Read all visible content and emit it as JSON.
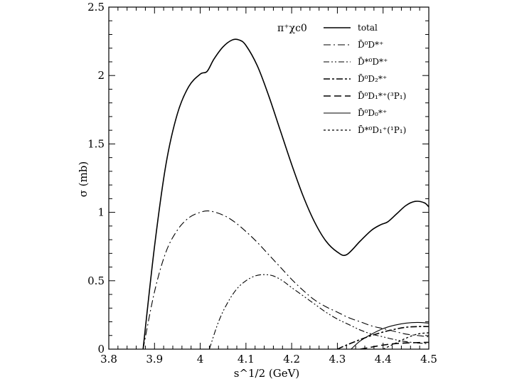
{
  "chart_data": {
    "type": "line",
    "title": "",
    "xlabel": "s^1/2 (GeV)",
    "ylabel": "σ (mb)",
    "xlim": [
      3.8,
      4.5
    ],
    "ylim": [
      0,
      2.5
    ],
    "x_ticks": [
      3.8,
      3.9,
      4.0,
      4.1,
      4.2,
      4.3,
      4.4,
      4.5
    ],
    "x_tick_labels": [
      "3.8",
      "3.9",
      "4",
      "4.1",
      "4.2",
      "4.3",
      "4.4",
      "4.5"
    ],
    "y_ticks": [
      0,
      0.5,
      1,
      1.5,
      2,
      2.5
    ],
    "y_tick_labels": [
      "0",
      "0.5",
      "1",
      "1.5",
      "2",
      "2.5"
    ],
    "legend_title": "π⁺χc0",
    "legend_position": "top-right",
    "series": [
      {
        "name": "total",
        "label_text": "total",
        "dash": "solid",
        "width": 1.6,
        "points": [
          [
            3.875,
            0
          ],
          [
            3.9,
            0.75
          ],
          [
            3.925,
            1.35
          ],
          [
            3.95,
            1.72
          ],
          [
            3.975,
            1.92
          ],
          [
            4.0,
            2.01
          ],
          [
            4.015,
            2.03
          ],
          [
            4.03,
            2.12
          ],
          [
            4.05,
            2.21
          ],
          [
            4.07,
            2.26
          ],
          [
            4.085,
            2.26
          ],
          [
            4.1,
            2.22
          ],
          [
            4.125,
            2.07
          ],
          [
            4.15,
            1.85
          ],
          [
            4.175,
            1.6
          ],
          [
            4.2,
            1.35
          ],
          [
            4.225,
            1.12
          ],
          [
            4.25,
            0.93
          ],
          [
            4.275,
            0.79
          ],
          [
            4.3,
            0.71
          ],
          [
            4.32,
            0.69
          ],
          [
            4.35,
            0.79
          ],
          [
            4.375,
            0.87
          ],
          [
            4.395,
            0.91
          ],
          [
            4.41,
            0.93
          ],
          [
            4.43,
            0.99
          ],
          [
            4.45,
            1.05
          ],
          [
            4.47,
            1.08
          ],
          [
            4.49,
            1.07
          ],
          [
            4.5,
            1.04
          ]
        ]
      },
      {
        "name": "D0 D*+",
        "label_text": "D̄⁰D*⁺",
        "dash": "10,4,2,4",
        "width": 1.1,
        "points": [
          [
            3.875,
            0
          ],
          [
            3.9,
            0.42
          ],
          [
            3.925,
            0.71
          ],
          [
            3.95,
            0.87
          ],
          [
            3.975,
            0.96
          ],
          [
            4.0,
            1.0
          ],
          [
            4.02,
            1.01
          ],
          [
            4.05,
            0.98
          ],
          [
            4.075,
            0.93
          ],
          [
            4.1,
            0.86
          ],
          [
            4.125,
            0.78
          ],
          [
            4.15,
            0.69
          ],
          [
            4.175,
            0.6
          ],
          [
            4.2,
            0.51
          ],
          [
            4.225,
            0.43
          ],
          [
            4.25,
            0.36
          ],
          [
            4.275,
            0.31
          ],
          [
            4.3,
            0.27
          ],
          [
            4.325,
            0.23
          ],
          [
            4.35,
            0.2
          ],
          [
            4.375,
            0.17
          ],
          [
            4.4,
            0.15
          ],
          [
            4.425,
            0.13
          ],
          [
            4.45,
            0.11
          ],
          [
            4.475,
            0.1
          ],
          [
            4.5,
            0.09
          ]
        ]
      },
      {
        "name": "D*0 D*+",
        "label_text": "D̄*⁰D*⁺",
        "dash": "8,3,2,3,2,3",
        "width": 1.1,
        "points": [
          [
            4.02,
            0
          ],
          [
            4.04,
            0.2
          ],
          [
            4.06,
            0.34
          ],
          [
            4.08,
            0.44
          ],
          [
            4.1,
            0.5
          ],
          [
            4.12,
            0.535
          ],
          [
            4.14,
            0.545
          ],
          [
            4.16,
            0.535
          ],
          [
            4.18,
            0.5
          ],
          [
            4.2,
            0.45
          ],
          [
            4.225,
            0.39
          ],
          [
            4.25,
            0.33
          ],
          [
            4.275,
            0.27
          ],
          [
            4.3,
            0.22
          ],
          [
            4.325,
            0.18
          ],
          [
            4.35,
            0.14
          ],
          [
            4.375,
            0.11
          ],
          [
            4.4,
            0.09
          ],
          [
            4.425,
            0.07
          ],
          [
            4.45,
            0.055
          ],
          [
            4.475,
            0.045
          ],
          [
            4.5,
            0.04
          ]
        ]
      },
      {
        "name": "D0 D2*+",
        "label_text": "D̄⁰D₂*⁺",
        "dash": "9,3,3,3",
        "width": 1.6,
        "points": [
          [
            4.3,
            0
          ],
          [
            4.32,
            0.03
          ],
          [
            4.35,
            0.07
          ],
          [
            4.375,
            0.1
          ],
          [
            4.4,
            0.125
          ],
          [
            4.425,
            0.145
          ],
          [
            4.45,
            0.16
          ],
          [
            4.475,
            0.165
          ],
          [
            4.5,
            0.165
          ]
        ]
      },
      {
        "name": "D0 D1*+(3P1)",
        "label_text": "D̄⁰D₁*⁺(³P₁)",
        "dash": "10,5",
        "width": 1.6,
        "points": [
          [
            4.35,
            0
          ],
          [
            4.375,
            0.015
          ],
          [
            4.4,
            0.03
          ],
          [
            4.425,
            0.04
          ],
          [
            4.45,
            0.045
          ],
          [
            4.475,
            0.048
          ],
          [
            4.5,
            0.05
          ]
        ]
      },
      {
        "name": "D0 D0*+",
        "label_text": "D̄⁰D₀*⁺",
        "dash": "solid",
        "width": 1.1,
        "points": [
          [
            4.33,
            0
          ],
          [
            4.35,
            0.06
          ],
          [
            4.375,
            0.11
          ],
          [
            4.4,
            0.15
          ],
          [
            4.425,
            0.175
          ],
          [
            4.45,
            0.19
          ],
          [
            4.475,
            0.195
          ],
          [
            4.5,
            0.19
          ]
        ]
      },
      {
        "name": "D*0 D1+(1P1)",
        "label_text": "D̄*⁰D₁⁺(¹P₁)",
        "dash": "3,3",
        "width": 1.3,
        "points": [
          [
            4.4,
            0
          ],
          [
            4.425,
            0.04
          ],
          [
            4.45,
            0.08
          ],
          [
            4.475,
            0.11
          ],
          [
            4.5,
            0.12
          ]
        ]
      }
    ]
  }
}
